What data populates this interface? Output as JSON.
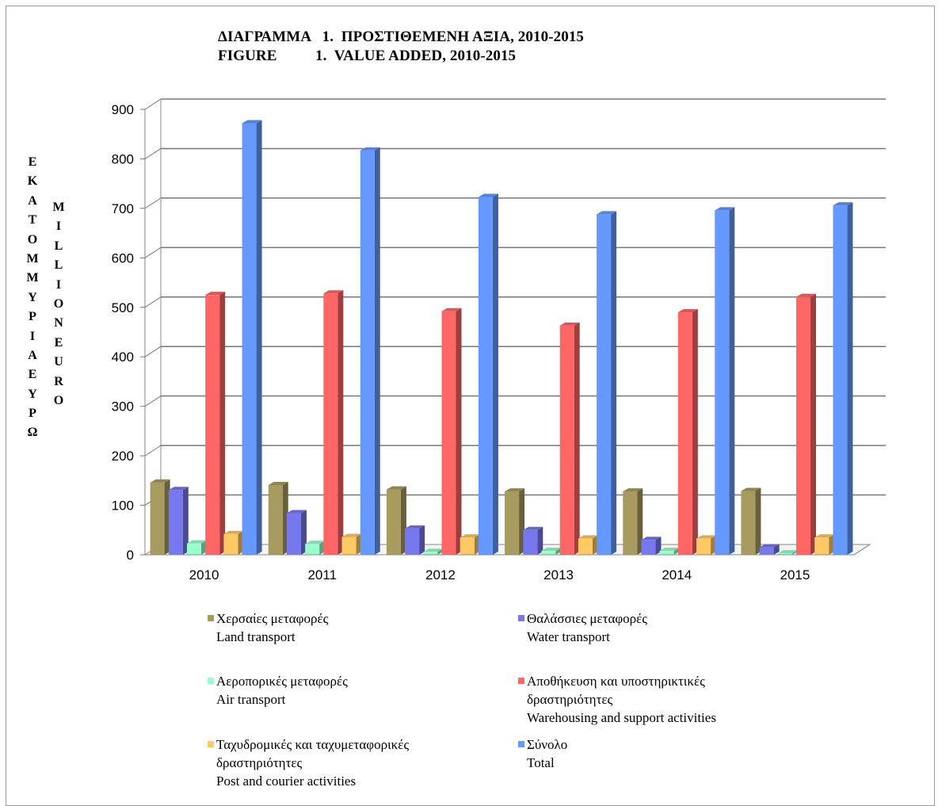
{
  "title_gr": "ΔΙΑΓΡΑΜΜΑ   1.  ΠΡΟΣΤΙΘΕΜΕΝΗ ΑΞΙΑ, 2010-2015",
  "title_en": "FIGURE          1.  VALUE ADDED, 2010-2015",
  "ylabel_gr": "ΕΚΑΤΟΜΜΥΡΙΑ ΕΥΡΩ",
  "ylabel_en": "MILLION EURO",
  "chart_data": {
    "type": "bar",
    "title": "ΔΙΑΓΡΑΜΜΑ 1. ΠΡΟΣΤΙΘΕΜΕΝΗ ΑΞΙΑ, 2010-2015 / FIGURE 1. VALUE ADDED, 2010-2015",
    "xlabel": "",
    "ylabel": "ΕΚΑΤΟΜΜΥΡΙΑ ΕΥΡΩ / MILLION EURO",
    "ylim": [
      0,
      900
    ],
    "yticks": [
      0,
      100,
      200,
      300,
      400,
      500,
      600,
      700,
      800,
      900
    ],
    "grid": true,
    "legend_position": "bottom",
    "categories": [
      "2010",
      "2011",
      "2012",
      "2013",
      "2014",
      "2015"
    ],
    "series": [
      {
        "name_gr": "Χερσαίες μεταφορές",
        "name_en": [
          "Land transport"
        ],
        "color": "#A89B60",
        "values": [
          146,
          141,
          132,
          128,
          128,
          129
        ]
      },
      {
        "name_gr": "Θαλάσσιες μεταφορές",
        "name_en": [
          "Water transport"
        ],
        "color": "#7777EE",
        "values": [
          131,
          84,
          53,
          50,
          30,
          15
        ]
      },
      {
        "name_gr": "Αεροπορικές μεταφορές",
        "name_en": [
          "Air transport"
        ],
        "color": "#99FFCC",
        "values": [
          23,
          22,
          6,
          8,
          8,
          3
        ]
      },
      {
        "name_gr": "Αποθήκευση και υποστηρικτικές",
        "name_en": [
          "δραστηριότητες",
          "Warehousing and support activities"
        ],
        "color": "#FF6666",
        "values": [
          525,
          528,
          492,
          463,
          490,
          521
        ]
      },
      {
        "name_gr": "Ταχυδρομικές και ταχυμεταφορικές",
        "name_en": [
          "δραστηριότητες",
          "Post and courier activities"
        ],
        "color": "#FFC966",
        "values": [
          42,
          36,
          35,
          33,
          33,
          35
        ]
      },
      {
        "name_gr": "Σύνολο",
        "name_en": [
          "Total"
        ],
        "color": "#6699FF",
        "values": [
          872,
          817,
          723,
          688,
          696,
          706
        ]
      }
    ]
  }
}
